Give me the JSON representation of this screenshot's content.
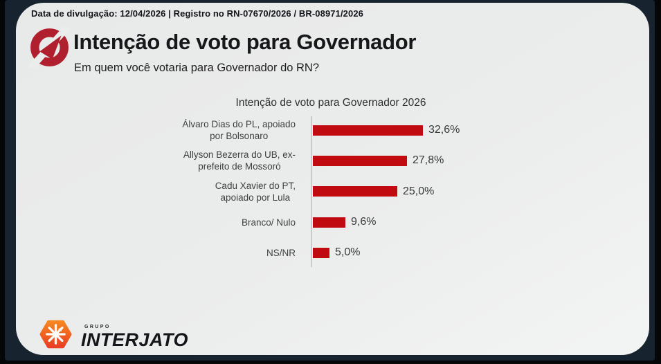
{
  "registration_bar": {
    "text": "Data de divulgação: 12/04/2026 | Registro no RN-07670/2026 / BR-08971/2026"
  },
  "header": {
    "title": "Intenção de voto para Governador",
    "subtitle": "Em quem você votaria para Governador do RN?",
    "logo_color": "#b01f2e"
  },
  "chart_data": {
    "type": "bar",
    "orientation": "horizontal",
    "title": "Intenção de voto para Governador 2026",
    "categories": [
      "Álvaro Dias do PL, apoiado por Bolsonaro",
      "Allyson Bezerra do UB, ex-prefeito de Mossoró",
      "Cadu Xavier do PT, apoiado por Lula",
      "Branco/ Nulo",
      "NS/NR"
    ],
    "category_lines": [
      [
        "Álvaro Dias do PL, apoiado",
        "por Bolsonaro"
      ],
      [
        "Allyson Bezerra do UB, ex-",
        "prefeito de Mossoró"
      ],
      [
        "Cadu Xavier do PT,",
        "apoiado por Lula"
      ],
      [
        "Branco/ Nulo"
      ],
      [
        "NS/NR"
      ]
    ],
    "values": [
      32.6,
      27.8,
      25.0,
      9.6,
      5.0
    ],
    "value_labels": [
      "32,6%",
      "27,8%",
      "25,0%",
      "9,6%",
      "5,0%"
    ],
    "bar_color": "#c00b10",
    "axis_color": "#c9cbcc",
    "xlim": [
      0,
      35
    ],
    "grid": false,
    "legend": false
  },
  "footer": {
    "brand_top": "GRUPO",
    "brand_name": "INTERJATO",
    "brand_orange_top": "#f6861f",
    "brand_orange_bottom": "#ea4023"
  },
  "frame": {
    "outer_color": "#050607",
    "panel_color": "#17232f",
    "card_color": "#ebecec"
  }
}
